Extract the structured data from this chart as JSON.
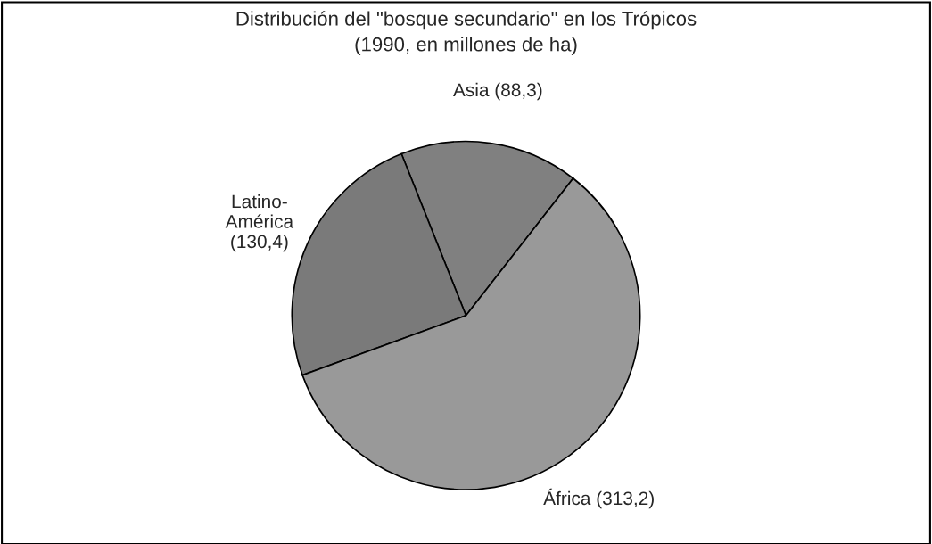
{
  "chart_data": {
    "type": "pie",
    "title": "Distribución del \"bosque secundario\" en los Trópicos\n(1990, en millones de ha)",
    "categories": [
      "Asia (88,3)",
      "Latino-\nAmérica\n(130,4)",
      "África (313,2)"
    ],
    "values": [
      88.3,
      130.4,
      313.2
    ],
    "colors": [
      "#808080",
      "#7a7a7a",
      "#999999"
    ]
  }
}
